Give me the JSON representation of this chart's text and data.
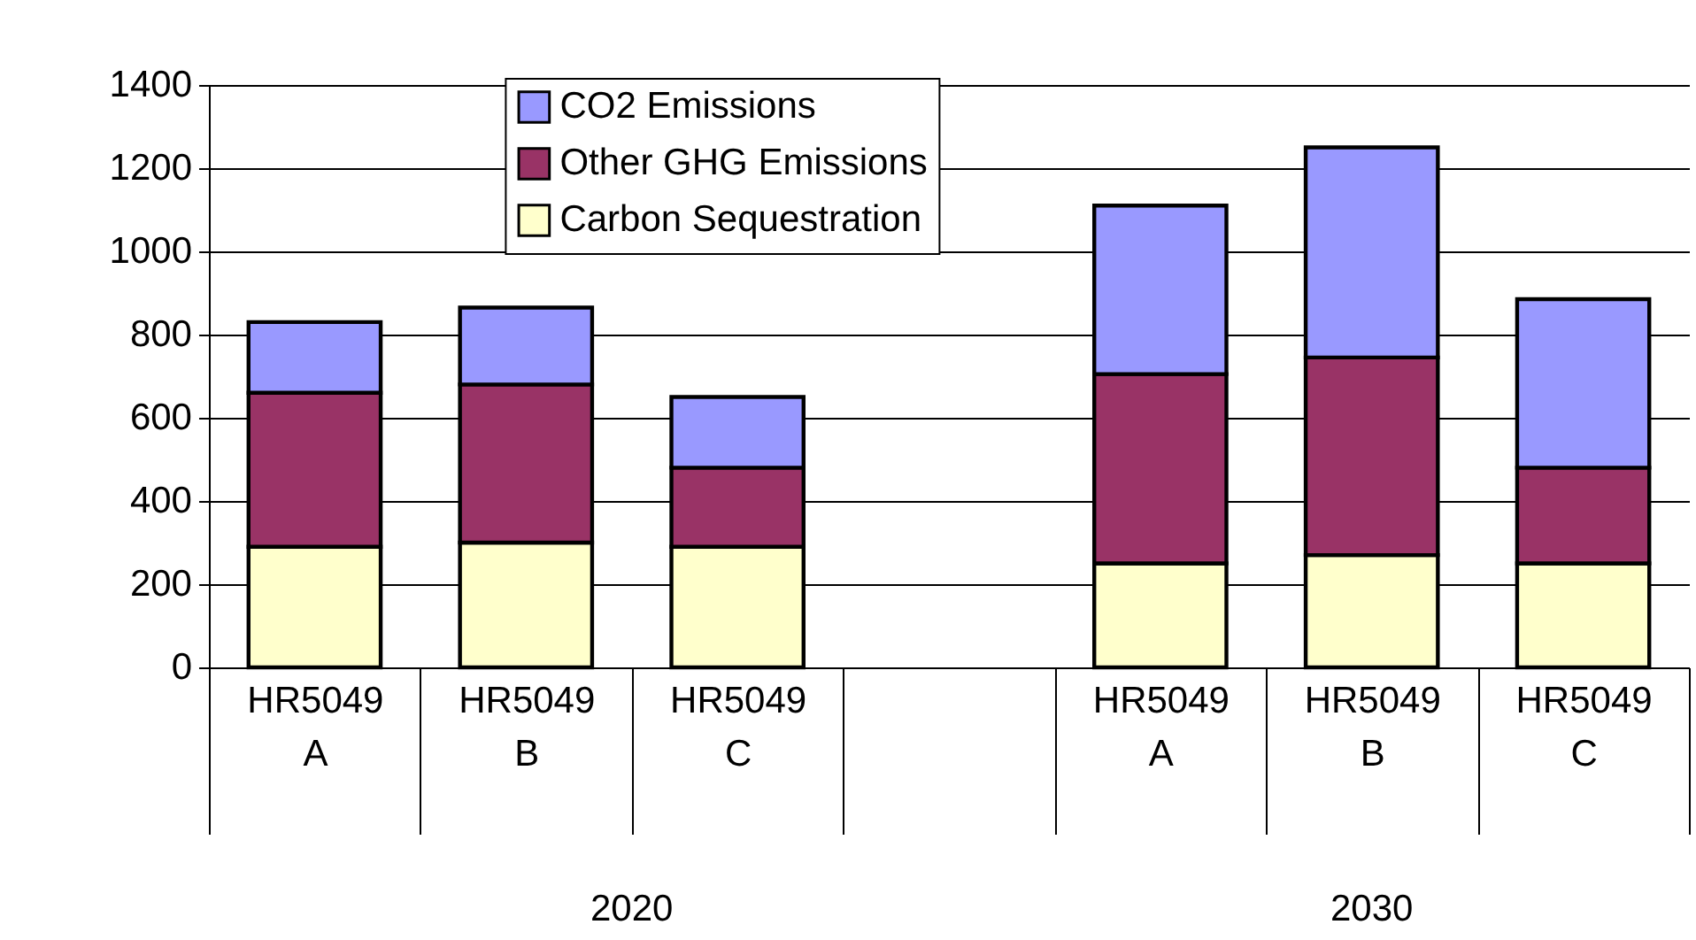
{
  "chart_data": {
    "type": "bar",
    "stacked": true,
    "categories": [
      "HR5049 A",
      "HR5049 B",
      "HR5049 C",
      null,
      "HR5049 A",
      "HR5049 B",
      "HR5049 C"
    ],
    "series": [
      {
        "name": "Carbon Sequestration",
        "color": "#ffffcc",
        "values": [
          290,
          300,
          290,
          null,
          250,
          270,
          250
        ]
      },
      {
        "name": "Other GHG Emissions",
        "color": "#993366",
        "values": [
          370,
          380,
          190,
          null,
          455,
          475,
          230
        ]
      },
      {
        "name": "CO2 Emissions",
        "color": "#9999ff",
        "values": [
          170,
          185,
          170,
          null,
          405,
          505,
          405
        ]
      }
    ],
    "annotations": [
      "2020",
      "2030"
    ],
    "ylim": [
      0,
      1400
    ],
    "yticks": [
      0,
      200,
      400,
      600,
      800,
      1000,
      1200,
      1400
    ],
    "grid": "y",
    "legend": "top"
  }
}
